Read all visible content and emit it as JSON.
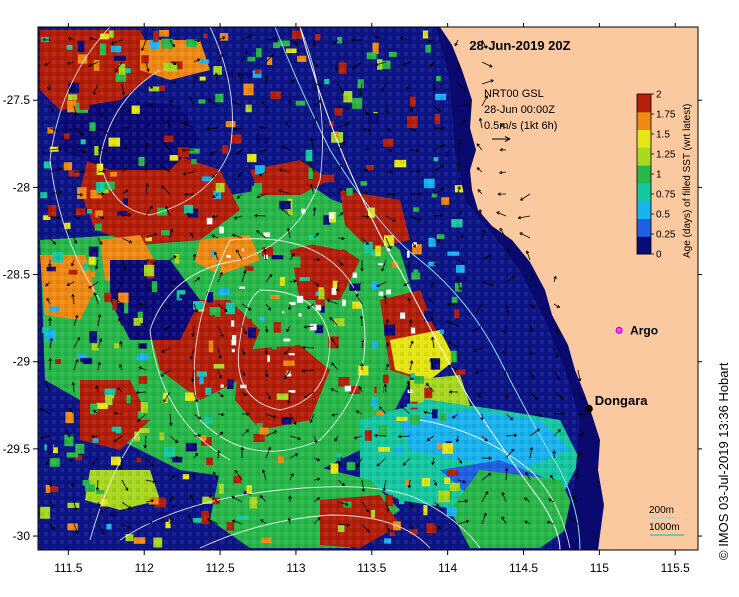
{
  "title": "28-Jun-2019 20Z",
  "credit": "© IMOS 03-Jul-2019 13:36 Hobart",
  "legend": {
    "product": "NRT00 GSL",
    "time": "28-Jun 00:00Z",
    "vector_scale": "0.5m/s (1kt 6h)"
  },
  "colorbar": {
    "label": "Age (days) of filled SST (wrt latest)",
    "ticks": [
      "0",
      "0.25",
      "0.5",
      "0.75",
      "1",
      "1.25",
      "1.5",
      "1.75",
      "2"
    ],
    "colors": [
      "#0a0a78",
      "#1f5fe0",
      "#19b4f0",
      "#15c8a0",
      "#28b84a",
      "#a8d820",
      "#e6e614",
      "#f08a14",
      "#b41e0a"
    ]
  },
  "places": [
    {
      "name": "Dongara",
      "lon": 114.93,
      "lat": -29.27
    },
    {
      "name": "Argo",
      "lon": 115.13,
      "lat": -28.82
    }
  ],
  "isobaths": {
    "labels": [
      "200m",
      "1000m"
    ]
  },
  "chart_data": {
    "type": "heatmap",
    "x_ticks": [
      "111.5",
      "112",
      "112.5",
      "113",
      "113.5",
      "114",
      "114.5",
      "115",
      "115.5"
    ],
    "y_ticks": [
      "-27.5",
      "-28",
      "-28.5",
      "-29",
      "-29.5",
      "-30"
    ],
    "xlim": [
      111.3,
      115.65
    ],
    "ylim": [
      -30.08,
      -27.08
    ],
    "land_color": "#fac9a0",
    "isobath_200_color": "#8edcf0",
    "isobath_1000_color": "#ffffff"
  }
}
